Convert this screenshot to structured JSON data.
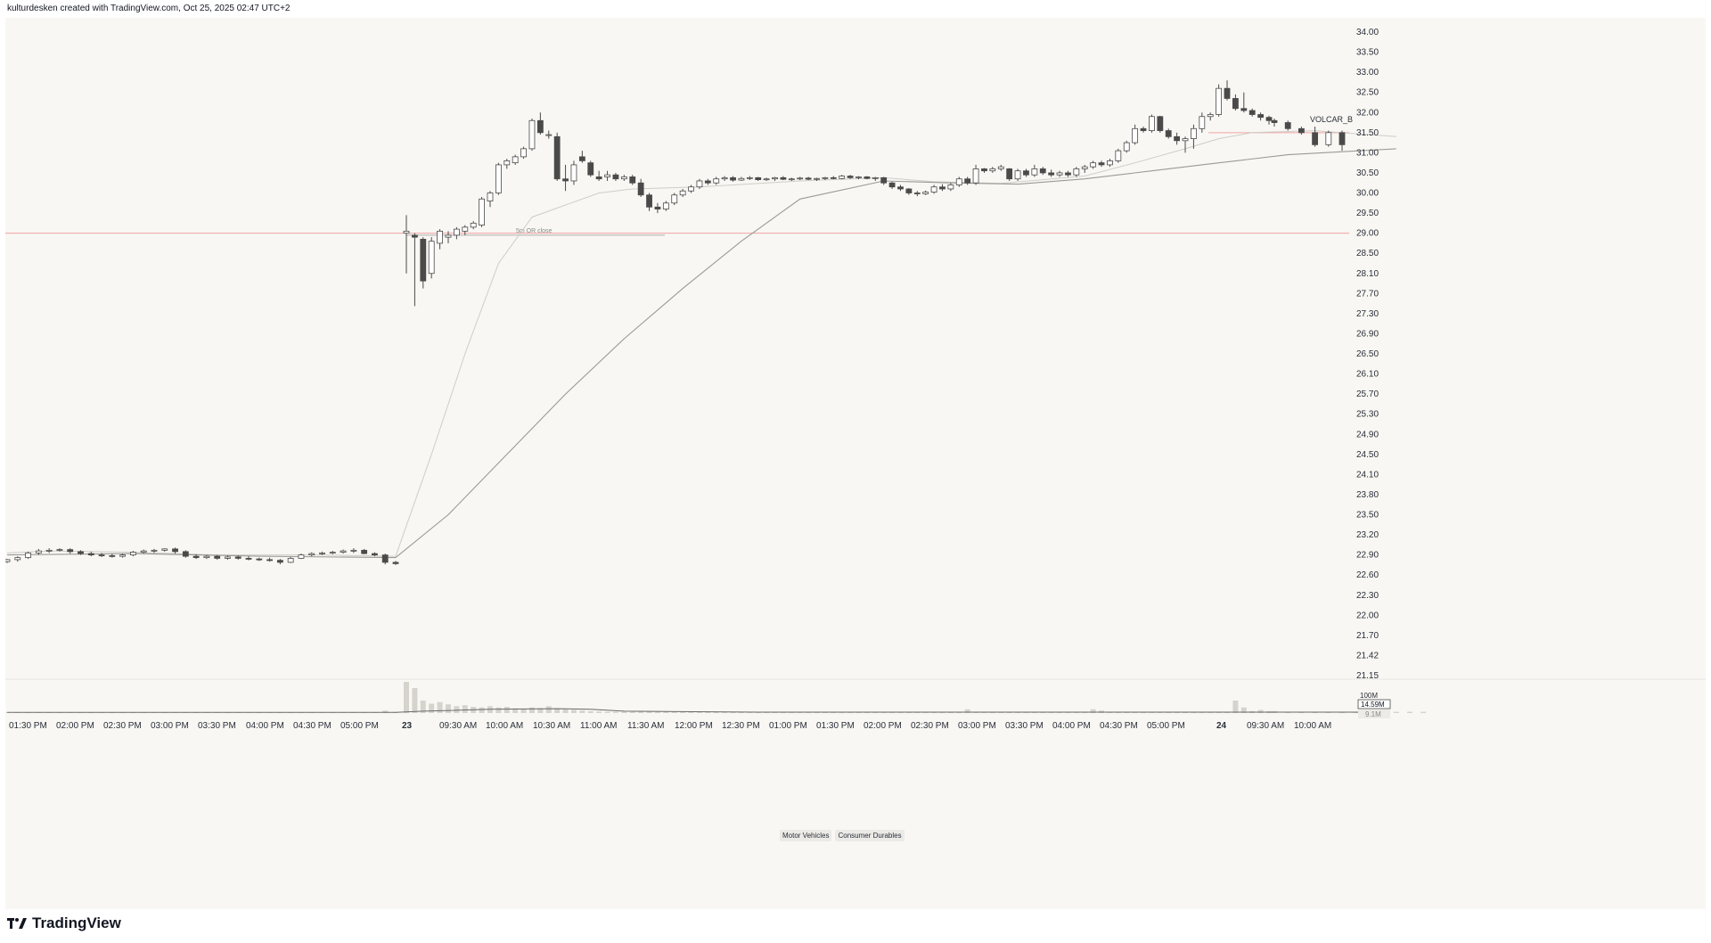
{
  "header": {
    "attribution": "kulturdesken created with TradingView.com, Oct 25, 2025 02:47 UTC+2"
  },
  "footer": {
    "brand": "TradingView",
    "logo_icon": "tradingview-logo-icon"
  },
  "sector_tags": [
    "Motor Vehicles",
    "Consumer Durables"
  ],
  "colors": {
    "background": "#f8f7f3",
    "candle_up_fill": "#ffffff",
    "candle_down_fill": "#4a4a4a",
    "candle_outline": "#4a4a4a",
    "ma_line": "#b8b8b4",
    "level_line": "#f0a5a5",
    "volume_bar": "#d6d3cd"
  },
  "chart_data": {
    "type": "candlestick",
    "price_axis_ticks": [
      "34.00",
      "33.50",
      "33.00",
      "32.50",
      "32.00",
      "31.50",
      "31.00",
      "30.50",
      "30.00",
      "29.50",
      "29.00",
      "28.50",
      "28.10",
      "27.70",
      "27.30",
      "26.90",
      "26.50",
      "26.10",
      "25.70",
      "25.30",
      "24.90",
      "24.50",
      "24.10",
      "23.80",
      "23.50",
      "23.20",
      "22.90",
      "22.60",
      "22.30",
      "22.00",
      "21.70",
      "21.42",
      "21.15"
    ],
    "time_axis_labels": [
      "01:30 PM",
      "02:00 PM",
      "02:30 PM",
      "03:00 PM",
      "03:30 PM",
      "04:00 PM",
      "04:30 PM",
      "05:00 PM",
      "23",
      "09:30 AM",
      "10:00 AM",
      "10:30 AM",
      "11:00 AM",
      "11:30 AM",
      "12:00 PM",
      "12:30 PM",
      "01:00 PM",
      "01:30 PM",
      "02:00 PM",
      "02:30 PM",
      "03:00 PM",
      "03:30 PM",
      "04:00 PM",
      "04:30 PM",
      "05:00 PM",
      "24",
      "09:30 AM",
      "10:00 AM"
    ],
    "day_labels": [
      "23",
      "24"
    ],
    "horizontal_levels": [
      {
        "price": 29.0,
        "label": "",
        "color": "#f0a5a5"
      },
      {
        "price": 28.95,
        "label": "5m OR close",
        "color": "#b0b0b0"
      },
      {
        "price": 31.5,
        "label": "VOLCAR_B",
        "color": "#f0a5a5"
      }
    ],
    "volume_axis": {
      "max_label": "100M",
      "current_volume_label": "14.59M",
      "average_volume_label": "9.1M"
    },
    "candles": [
      [
        22.8,
        22.84,
        22.78,
        22.83
      ],
      [
        22.83,
        22.88,
        22.8,
        22.86
      ],
      [
        22.86,
        22.95,
        22.84,
        22.93
      ],
      [
        22.93,
        22.99,
        22.9,
        22.96
      ],
      [
        22.96,
        23.0,
        22.93,
        22.97
      ],
      [
        22.97,
        23.0,
        22.95,
        22.98
      ],
      [
        22.98,
        23.0,
        22.92,
        22.95
      ],
      [
        22.95,
        22.97,
        22.9,
        22.92
      ],
      [
        22.92,
        22.95,
        22.88,
        22.9
      ],
      [
        22.9,
        22.93,
        22.87,
        22.89
      ],
      [
        22.89,
        22.92,
        22.86,
        22.88
      ],
      [
        22.88,
        22.92,
        22.86,
        22.9
      ],
      [
        22.9,
        22.96,
        22.88,
        22.94
      ],
      [
        22.94,
        22.98,
        22.92,
        22.96
      ],
      [
        22.96,
        22.99,
        22.93,
        22.97
      ],
      [
        22.97,
        23.0,
        22.95,
        22.99
      ],
      [
        22.99,
        23.01,
        22.92,
        22.95
      ],
      [
        22.95,
        22.97,
        22.86,
        22.88
      ],
      [
        22.88,
        22.91,
        22.84,
        22.86
      ],
      [
        22.86,
        22.9,
        22.84,
        22.88
      ],
      [
        22.88,
        22.9,
        22.83,
        22.85
      ],
      [
        22.85,
        22.89,
        22.83,
        22.87
      ],
      [
        22.87,
        22.89,
        22.83,
        22.85
      ],
      [
        22.85,
        22.88,
        22.82,
        22.84
      ],
      [
        22.84,
        22.86,
        22.81,
        22.83
      ],
      [
        22.83,
        22.86,
        22.8,
        22.82
      ],
      [
        22.82,
        22.84,
        22.76,
        22.79
      ],
      [
        22.79,
        22.87,
        22.78,
        22.85
      ],
      [
        22.85,
        22.92,
        22.84,
        22.9
      ],
      [
        22.9,
        22.94,
        22.88,
        22.92
      ],
      [
        22.92,
        22.95,
        22.9,
        22.93
      ],
      [
        22.93,
        22.96,
        22.91,
        22.94
      ],
      [
        22.94,
        22.98,
        22.92,
        22.96
      ],
      [
        22.96,
        23.0,
        22.93,
        22.97
      ],
      [
        22.97,
        22.99,
        22.91,
        22.92
      ],
      [
        22.92,
        22.94,
        22.88,
        22.9
      ],
      [
        22.9,
        22.92,
        22.76,
        22.79
      ],
      [
        22.79,
        22.81,
        22.75,
        22.77
      ],
      [
        29.0,
        29.45,
        28.1,
        29.05
      ],
      [
        28.95,
        29.0,
        27.45,
        28.9
      ],
      [
        28.85,
        28.9,
        27.8,
        27.95
      ],
      [
        28.1,
        28.9,
        28.0,
        28.8
      ],
      [
        28.75,
        29.1,
        28.6,
        29.05
      ],
      [
        28.9,
        29.05,
        28.75,
        28.95
      ],
      [
        28.95,
        29.15,
        28.85,
        29.1
      ],
      [
        29.05,
        29.2,
        28.95,
        29.15
      ],
      [
        29.15,
        29.3,
        29.1,
        29.25
      ],
      [
        29.2,
        29.9,
        29.15,
        29.85
      ],
      [
        29.8,
        30.05,
        29.65,
        30.0
      ],
      [
        30.0,
        30.75,
        29.95,
        30.7
      ],
      [
        30.7,
        30.85,
        30.6,
        30.8
      ],
      [
        30.75,
        30.95,
        30.7,
        30.9
      ],
      [
        30.9,
        31.15,
        30.85,
        31.1
      ],
      [
        31.1,
        31.85,
        31.05,
        31.8
      ],
      [
        31.8,
        32.0,
        31.45,
        31.5
      ],
      [
        31.45,
        31.55,
        31.35,
        31.45
      ],
      [
        31.4,
        31.5,
        30.3,
        30.35
      ],
      [
        30.35,
        30.7,
        30.05,
        30.3
      ],
      [
        30.3,
        30.8,
        30.2,
        30.7
      ],
      [
        30.9,
        31.05,
        30.75,
        30.8
      ],
      [
        30.75,
        30.8,
        30.4,
        30.45
      ],
      [
        30.4,
        30.55,
        30.3,
        30.35
      ],
      [
        30.4,
        30.55,
        30.3,
        30.45
      ],
      [
        30.45,
        30.5,
        30.3,
        30.35
      ],
      [
        30.35,
        30.45,
        30.3,
        30.4
      ],
      [
        30.4,
        30.45,
        30.2,
        30.25
      ],
      [
        30.25,
        30.35,
        29.9,
        29.95
      ],
      [
        29.95,
        30.0,
        29.55,
        29.65
      ],
      [
        29.65,
        29.75,
        29.5,
        29.6
      ],
      [
        29.6,
        29.8,
        29.55,
        29.75
      ],
      [
        29.75,
        30.0,
        29.7,
        29.95
      ],
      [
        29.95,
        30.1,
        29.9,
        30.05
      ],
      [
        30.05,
        30.2,
        30.0,
        30.15
      ],
      [
        30.15,
        30.35,
        30.1,
        30.3
      ],
      [
        30.3,
        30.35,
        30.2,
        30.25
      ],
      [
        30.25,
        30.4,
        30.2,
        30.35
      ],
      [
        30.35,
        30.42,
        30.3,
        30.38
      ],
      [
        30.38,
        30.42,
        30.28,
        30.32
      ],
      [
        30.32,
        30.4,
        30.3,
        30.36
      ],
      [
        30.36,
        30.42,
        30.32,
        30.38
      ],
      [
        30.38,
        30.4,
        30.3,
        30.33
      ],
      [
        30.33,
        30.38,
        30.3,
        30.35
      ],
      [
        30.35,
        30.4,
        30.3,
        30.38
      ],
      [
        30.38,
        30.42,
        30.32,
        30.34
      ],
      [
        30.34,
        30.38,
        30.3,
        30.35
      ],
      [
        30.35,
        30.4,
        30.32,
        30.37
      ],
      [
        30.37,
        30.4,
        30.32,
        30.34
      ],
      [
        30.34,
        30.38,
        30.3,
        30.36
      ],
      [
        30.36,
        30.4,
        30.32,
        30.38
      ],
      [
        30.38,
        30.42,
        30.34,
        30.36
      ],
      [
        30.36,
        30.45,
        30.34,
        30.42
      ],
      [
        30.42,
        30.45,
        30.35,
        30.38
      ],
      [
        30.38,
        30.42,
        30.34,
        30.4
      ],
      [
        30.4,
        30.42,
        30.34,
        30.36
      ],
      [
        30.36,
        30.4,
        30.3,
        30.38
      ],
      [
        30.38,
        30.4,
        30.2,
        30.25
      ],
      [
        30.25,
        30.28,
        30.1,
        30.15
      ],
      [
        30.15,
        30.2,
        30.05,
        30.1
      ],
      [
        30.1,
        30.12,
        29.95,
        30.0
      ],
      [
        30.0,
        30.05,
        29.92,
        29.98
      ],
      [
        29.98,
        30.06,
        29.95,
        30.02
      ],
      [
        30.02,
        30.2,
        29.98,
        30.15
      ],
      [
        30.15,
        30.22,
        30.05,
        30.1
      ],
      [
        30.1,
        30.25,
        30.05,
        30.2
      ],
      [
        30.2,
        30.4,
        30.15,
        30.35
      ],
      [
        30.35,
        30.4,
        30.2,
        30.25
      ],
      [
        30.25,
        30.7,
        30.2,
        30.6
      ],
      [
        30.6,
        30.62,
        30.5,
        30.55
      ],
      [
        30.55,
        30.65,
        30.5,
        30.6
      ],
      [
        30.6,
        30.7,
        30.55,
        30.65
      ],
      [
        30.6,
        30.62,
        30.3,
        30.35
      ],
      [
        30.35,
        30.6,
        30.3,
        30.55
      ],
      [
        30.55,
        30.6,
        30.4,
        30.45
      ],
      [
        30.45,
        30.7,
        30.4,
        30.6
      ],
      [
        30.6,
        30.65,
        30.45,
        30.5
      ],
      [
        30.5,
        30.58,
        30.4,
        30.45
      ],
      [
        30.45,
        30.55,
        30.4,
        30.5
      ],
      [
        30.5,
        30.55,
        30.4,
        30.45
      ],
      [
        30.45,
        30.65,
        30.4,
        30.6
      ],
      [
        30.6,
        30.7,
        30.5,
        30.65
      ],
      [
        30.65,
        30.8,
        30.6,
        30.75
      ],
      [
        30.75,
        30.8,
        30.65,
        30.7
      ],
      [
        30.7,
        30.85,
        30.65,
        30.8
      ],
      [
        30.8,
        31.1,
        30.75,
        31.05
      ],
      [
        31.05,
        31.3,
        31.0,
        31.25
      ],
      [
        31.25,
        31.7,
        31.2,
        31.6
      ],
      [
        31.6,
        31.65,
        31.5,
        31.55
      ],
      [
        31.55,
        31.95,
        31.5,
        31.9
      ],
      [
        31.9,
        31.92,
        31.5,
        31.55
      ],
      [
        31.55,
        31.6,
        31.35,
        31.4
      ],
      [
        31.4,
        31.5,
        31.2,
        31.3
      ],
      [
        31.3,
        31.4,
        31.0,
        31.35
      ],
      [
        31.35,
        31.7,
        31.1,
        31.6
      ],
      [
        31.6,
        32.0,
        31.5,
        31.9
      ],
      [
        31.9,
        32.0,
        31.8,
        31.95
      ],
      [
        31.95,
        32.7,
        31.9,
        32.6
      ],
      [
        32.6,
        32.8,
        32.3,
        32.35
      ],
      [
        32.35,
        32.45,
        32.05,
        32.1
      ],
      [
        32.1,
        32.5,
        32.0,
        32.05
      ],
      [
        32.05,
        32.1,
        31.9,
        31.95
      ],
      [
        31.95,
        32.0,
        31.8,
        31.88
      ],
      [
        31.88,
        31.92,
        31.7,
        31.8
      ],
      [
        31.8,
        31.85,
        31.65,
        31.75
      ],
      [
        31.75,
        31.8,
        31.55,
        31.6
      ],
      [
        31.6,
        31.65,
        31.45,
        31.5
      ],
      [
        31.5,
        31.65,
        31.15,
        31.2
      ],
      [
        31.2,
        31.55,
        31.15,
        31.5
      ],
      [
        31.5,
        31.55,
        31.05,
        31.2
      ]
    ],
    "moving_averages": [
      {
        "points": [
          [
            0,
            22.93
          ],
          [
            4,
            22.96
          ],
          [
            12,
            22.94
          ],
          [
            20,
            22.9
          ],
          [
            30,
            22.9
          ],
          [
            37,
            22.88
          ],
          [
            41,
            24.5
          ],
          [
            45,
            26.5
          ],
          [
            49,
            28.3
          ],
          [
            53,
            29.4
          ],
          [
            57,
            29.7
          ],
          [
            61,
            30.0
          ],
          [
            65,
            30.1
          ],
          [
            73,
            30.15
          ],
          [
            85,
            30.3
          ],
          [
            95,
            30.38
          ],
          [
            101,
            30.28
          ],
          [
            109,
            30.24
          ],
          [
            119,
            30.42
          ],
          [
            125,
            30.75
          ],
          [
            131,
            31.1
          ],
          [
            135,
            31.35
          ],
          [
            139,
            31.5
          ],
          [
            145,
            31.55
          ],
          [
            151,
            31.4
          ]
        ]
      },
      {
        "points": [
          [
            0,
            22.9
          ],
          [
            12,
            22.92
          ],
          [
            24,
            22.88
          ],
          [
            37,
            22.86
          ],
          [
            43,
            23.5
          ],
          [
            50,
            24.5
          ],
          [
            57,
            25.7
          ],
          [
            64,
            26.8
          ],
          [
            71,
            27.8
          ],
          [
            78,
            28.8
          ],
          [
            85,
            29.85
          ],
          [
            95,
            30.3
          ],
          [
            103,
            30.25
          ],
          [
            111,
            30.22
          ],
          [
            119,
            30.35
          ],
          [
            127,
            30.55
          ],
          [
            135,
            30.75
          ],
          [
            143,
            30.95
          ],
          [
            151,
            31.1
          ]
        ]
      }
    ],
    "volume_ma": [
      [
        0,
        2
      ],
      [
        20,
        2
      ],
      [
        37,
        2
      ],
      [
        40,
        6
      ],
      [
        48,
        12
      ],
      [
        56,
        14
      ],
      [
        60,
        12
      ],
      [
        64,
        6
      ],
      [
        80,
        3
      ],
      [
        110,
        3
      ],
      [
        150,
        3
      ]
    ],
    "volumes": [
      2,
      2,
      2,
      2,
      2,
      2,
      2,
      2,
      2,
      2,
      2,
      2,
      2,
      2,
      2,
      2,
      2,
      2,
      2,
      2,
      2,
      2,
      2,
      2,
      2,
      2,
      2,
      2,
      2,
      2,
      2,
      2,
      2,
      2,
      2,
      2,
      8,
      3,
      100,
      80,
      40,
      30,
      35,
      28,
      22,
      25,
      20,
      18,
      22,
      18,
      20,
      15,
      12,
      18,
      16,
      22,
      15,
      12,
      10,
      8,
      6,
      5,
      4,
      4,
      4,
      4,
      6,
      5,
      4,
      4,
      4,
      3,
      3,
      3,
      3,
      3,
      3,
      3,
      3,
      3,
      3,
      3,
      3,
      3,
      3,
      3,
      3,
      3,
      3,
      3,
      3,
      3,
      3,
      3,
      3,
      3,
      3,
      3,
      3,
      3,
      3,
      3,
      3,
      3,
      3,
      12,
      3,
      3,
      3,
      3,
      3,
      3,
      3,
      3,
      3,
      3,
      3,
      3,
      3,
      3,
      12,
      8,
      3,
      3,
      3,
      3,
      3,
      3,
      3,
      3,
      4,
      4,
      4,
      4,
      4,
      4,
      4,
      40,
      18,
      6,
      10,
      6,
      6,
      4,
      4,
      4,
      4,
      4,
      4,
      4,
      4,
      4,
      4,
      4
    ]
  }
}
